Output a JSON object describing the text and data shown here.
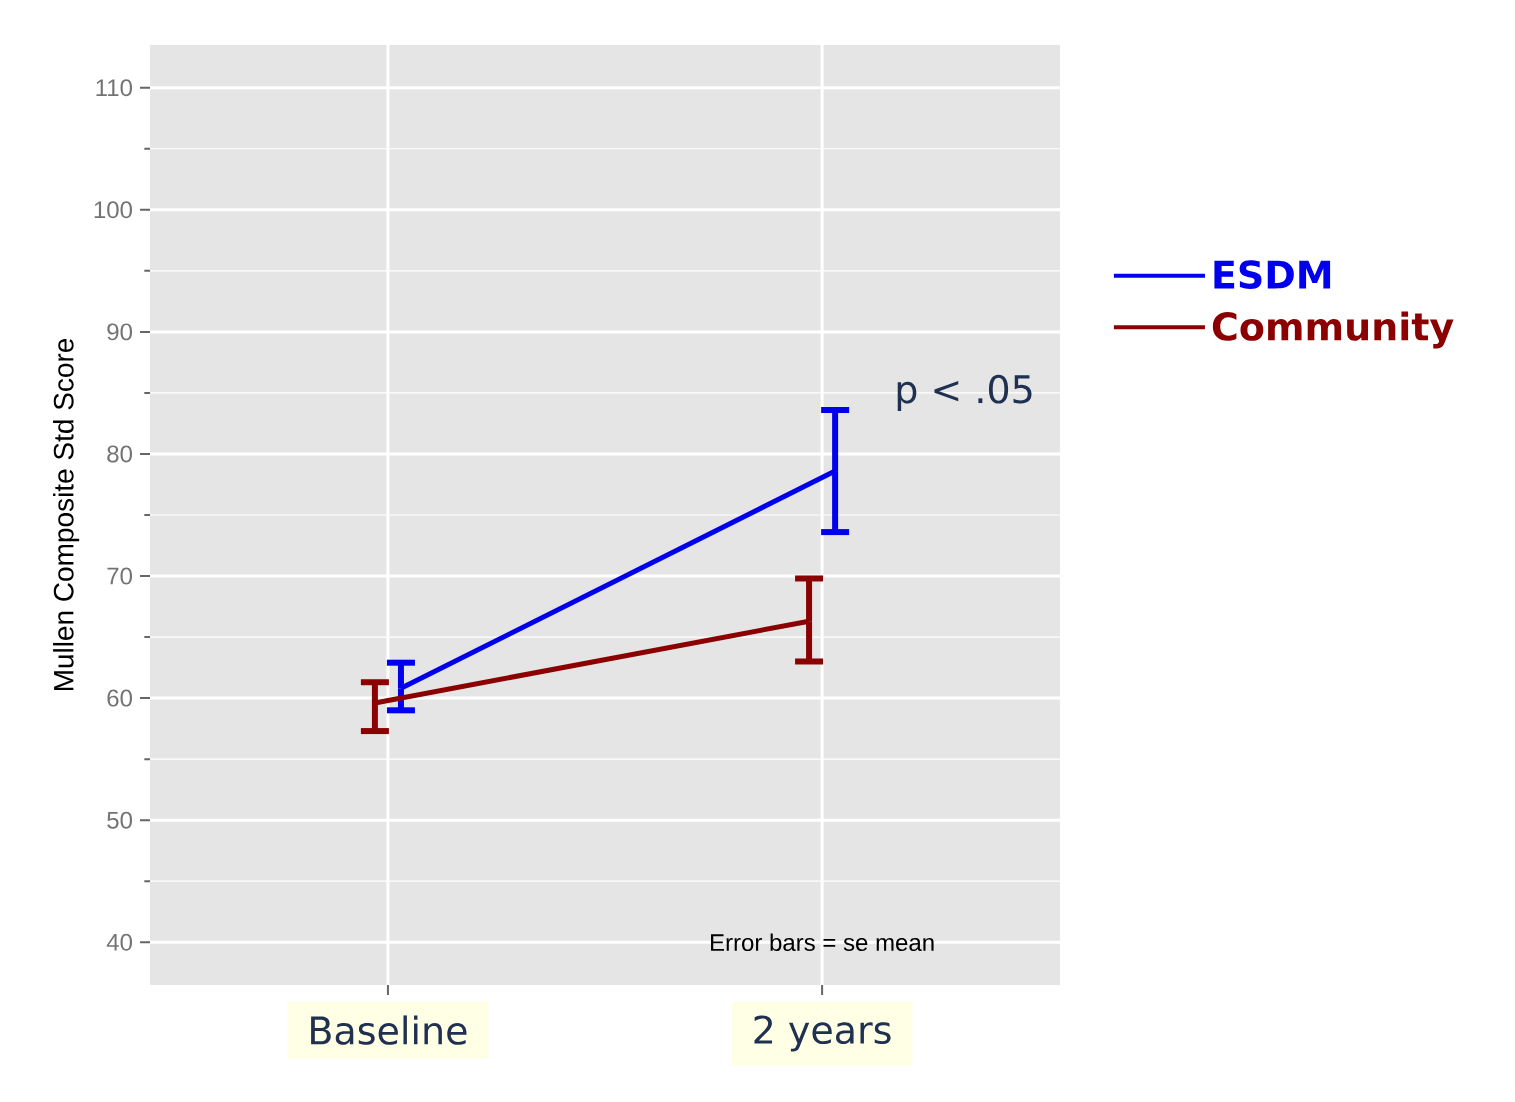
{
  "chart_data": {
    "type": "line",
    "ylabel": "Mullen Composite Std Score",
    "categories": [
      "Baseline",
      "2 years"
    ],
    "series": [
      {
        "name": "ESDM",
        "color": "#0000ee",
        "values": [
          60.8,
          78.6
        ],
        "errors": [
          [
            59.0,
            62.9
          ],
          5.0
        ]
      },
      {
        "name": "Community",
        "color": "#8b0000",
        "values": [
          59.6,
          66.3
        ],
        "errors": [
          [
            57.3,
            61.3
          ],
          [
            63.0,
            69.8
          ]
        ]
      }
    ],
    "ylim": [
      36.5,
      113.5
    ],
    "yticks": [
      40,
      50,
      60,
      70,
      80,
      90,
      100,
      110
    ],
    "grid": true,
    "legend": "right",
    "marker": "none",
    "line_style": "solid",
    "annotations": [
      "p < .05",
      "Error bars = se mean"
    ]
  }
}
